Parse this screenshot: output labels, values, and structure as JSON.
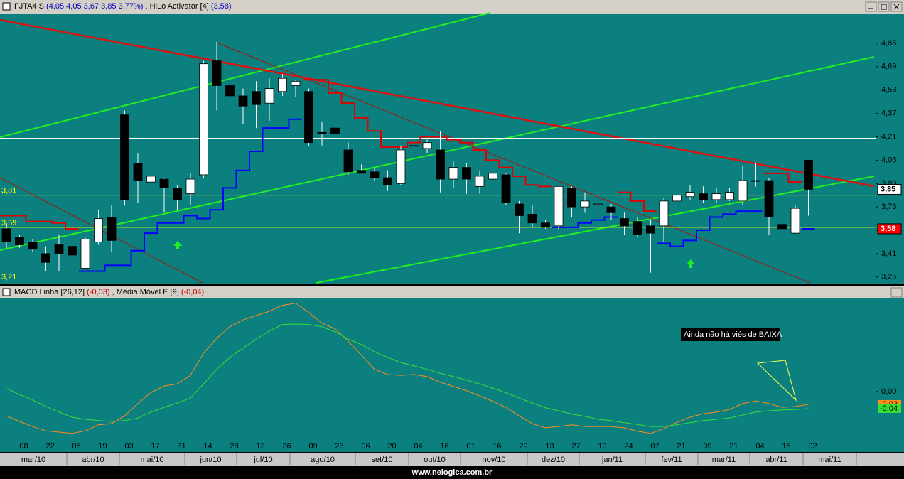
{
  "chart_data": [
    {
      "type": "candlestick",
      "title_parts": [
        {
          "text": "FJTA4 S",
          "color": "#000000"
        },
        {
          "text": "(4,05   4,05   3,67   3,85   3,77%)",
          "color": "#0000c0"
        },
        {
          "text": ", HiLo Activator [4]",
          "color": "#000000"
        },
        {
          "text": "(3,58)",
          "color": "#0000c0"
        }
      ],
      "categories": [
        null,
        "08",
        null,
        "22",
        null,
        "05",
        null,
        "19",
        null,
        "03",
        null,
        "17",
        null,
        "31",
        null,
        "14",
        null,
        "28",
        null,
        "12",
        null,
        "26",
        null,
        "09",
        null,
        "23",
        null,
        "06",
        null,
        "20",
        null,
        "04",
        null,
        "18",
        null,
        "01",
        null,
        "16",
        null,
        "29",
        null,
        "13",
        null,
        "27",
        null,
        "10",
        null,
        "24",
        null,
        "07",
        null,
        "21",
        null,
        "09",
        null,
        "21",
        null,
        "04",
        null,
        "18",
        null,
        "02"
      ],
      "months": [
        "mar/10",
        "abr/10",
        "mai/10",
        "jun/10",
        "jul/10",
        "ago/10",
        "set/10",
        "out/10",
        "nov/10",
        "dez/10",
        "jan/11",
        "fev/11",
        "mar/11",
        "abr/11",
        "mai/11"
      ],
      "open": [
        3.58,
        3.52,
        3.49,
        3.41,
        3.47,
        3.46,
        3.31,
        3.49,
        3.66,
        4.36,
        4.03,
        3.9,
        3.92,
        3.86,
        3.82,
        3.95,
        4.73,
        4.56,
        4.49,
        4.52,
        4.44,
        4.52,
        4.56,
        4.52,
        4.24,
        4.27,
        4.12,
        3.98,
        3.97,
        3.93,
        3.89,
        4.15,
        4.13,
        4.12,
        3.92,
        4.0,
        3.87,
        3.92,
        3.95,
        3.75,
        3.68,
        3.62,
        3.6,
        3.86,
        3.73,
        3.75,
        3.73,
        3.65,
        3.63,
        3.6,
        3.6,
        3.77,
        3.8,
        3.82,
        3.78,
        3.78,
        3.77,
        3.91,
        3.91,
        3.61,
        3.55,
        4.05
      ],
      "high": [
        3.62,
        3.54,
        3.51,
        3.46,
        3.54,
        3.49,
        3.52,
        3.71,
        3.74,
        4.39,
        4.1,
        4.03,
        3.93,
        3.88,
        3.96,
        4.73,
        4.86,
        4.64,
        4.54,
        4.59,
        4.61,
        4.64,
        4.6,
        4.54,
        4.31,
        4.34,
        4.17,
        4.02,
        4.0,
        3.98,
        4.15,
        4.24,
        4.19,
        4.25,
        4.04,
        4.03,
        3.98,
        3.98,
        3.96,
        3.77,
        3.74,
        3.64,
        3.87,
        3.87,
        3.83,
        3.81,
        3.75,
        3.69,
        3.66,
        3.64,
        3.79,
        3.86,
        3.88,
        3.87,
        3.86,
        3.86,
        4.01,
        4.03,
        3.93,
        3.64,
        3.74,
        4.05
      ],
      "low": [
        3.44,
        3.45,
        3.42,
        3.29,
        3.29,
        3.3,
        3.31,
        3.47,
        3.42,
        3.74,
        3.76,
        3.69,
        3.69,
        3.71,
        3.74,
        3.93,
        4.39,
        4.13,
        4.3,
        4.27,
        4.32,
        4.49,
        4.48,
        4.15,
        4.15,
        3.98,
        3.95,
        3.96,
        3.91,
        3.84,
        3.88,
        4.1,
        4.1,
        3.83,
        3.86,
        3.82,
        3.82,
        3.81,
        3.74,
        3.55,
        3.59,
        3.58,
        3.58,
        3.66,
        3.69,
        3.69,
        3.64,
        3.54,
        3.52,
        3.28,
        3.49,
        3.75,
        3.78,
        3.76,
        3.76,
        3.77,
        3.74,
        3.87,
        3.54,
        3.4,
        3.55,
        3.67
      ],
      "close": [
        3.49,
        3.47,
        3.44,
        3.35,
        3.41,
        3.4,
        3.51,
        3.65,
        3.5,
        3.78,
        3.91,
        3.94,
        3.86,
        3.78,
        3.92,
        4.71,
        4.56,
        4.49,
        4.42,
        4.43,
        4.54,
        4.61,
        4.59,
        4.17,
        4.23,
        4.23,
        3.97,
        3.96,
        3.93,
        3.88,
        4.12,
        4.15,
        4.17,
        3.92,
        4.0,
        3.92,
        3.94,
        3.96,
        3.76,
        3.67,
        3.62,
        3.59,
        3.87,
        3.73,
        3.77,
        3.75,
        3.69,
        3.6,
        3.54,
        3.55,
        3.77,
        3.81,
        3.83,
        3.78,
        3.82,
        3.83,
        3.91,
        3.91,
        3.66,
        3.58,
        3.72,
        3.85
      ],
      "up_color": "#ffffff",
      "down_color": "#000000",
      "wick_color": "#ffffff",
      "hilo_sell": [
        3.67,
        3.67,
        3.63,
        3.63,
        3.62,
        3.58,
        null,
        null,
        null,
        null,
        null,
        null,
        null,
        null,
        null,
        null,
        null,
        null,
        null,
        null,
        null,
        null,
        null,
        4.6,
        4.6,
        4.51,
        4.44,
        4.34,
        4.25,
        4.14,
        4.14,
        4.17,
        4.21,
        4.21,
        4.19,
        4.17,
        4.12,
        4.05,
        4.0,
        3.94,
        3.88,
        3.87,
        null,
        null,
        null,
        null,
        null,
        3.83,
        3.77,
        3.7,
        null,
        null,
        null,
        null,
        null,
        null,
        null,
        null,
        3.96,
        3.96,
        3.9,
        null
      ],
      "hilo_buy": [
        null,
        null,
        null,
        null,
        null,
        null,
        3.29,
        3.29,
        3.33,
        3.33,
        3.43,
        3.55,
        3.62,
        3.62,
        3.67,
        3.65,
        3.71,
        3.86,
        3.98,
        4.11,
        4.27,
        4.27,
        4.33,
        null,
        null,
        null,
        null,
        null,
        null,
        null,
        null,
        null,
        null,
        null,
        null,
        null,
        null,
        null,
        null,
        null,
        null,
        null,
        3.59,
        3.59,
        3.62,
        3.64,
        3.66,
        null,
        null,
        null,
        3.48,
        3.46,
        3.5,
        3.57,
        3.66,
        3.68,
        3.7,
        3.7,
        null,
        null,
        null,
        3.58
      ],
      "hilo_sell_color": "#e00000",
      "hilo_buy_color": "#0000ff",
      "ylim": [
        3.21,
        5.015
      ],
      "yticks": [
        {
          "value": 4.85,
          "label": "4,85"
        },
        {
          "value": 4.69,
          "label": "4,69"
        },
        {
          "value": 4.53,
          "label": "4,53"
        },
        {
          "value": 4.37,
          "label": "4,37"
        },
        {
          "value": 4.21,
          "label": "4,21"
        },
        {
          "value": 4.05,
          "label": "4,05"
        },
        {
          "value": 3.89,
          "label": "3,89"
        },
        {
          "value": 3.73,
          "label": "3,73"
        },
        {
          "value": 3.57,
          "label": "3,57"
        },
        {
          "value": 3.41,
          "label": "3,41"
        },
        {
          "value": 3.25,
          "label": "3,25"
        }
      ],
      "hlines": [
        {
          "value": 3.81,
          "label": "3,81",
          "color": "#ffff00"
        },
        {
          "value": 3.59,
          "label": "3,59",
          "color": "#ffff00"
        },
        {
          "value": 4.2,
          "color": "#ffffff"
        },
        {
          "value": 3.21,
          "label": "3,21"
        }
      ],
      "price_tags": [
        {
          "value": 3.85,
          "label": "3,85",
          "color": "#ffffff",
          "text_color": "#000000"
        },
        {
          "value": 3.58,
          "label": "3,58",
          "color": "#ff0000",
          "text_color": "#ffffff"
        }
      ]
    },
    {
      "type": "line",
      "title_parts": [
        {
          "text": "MACD Linha [26,12]",
          "color": "#000000"
        },
        {
          "text": "(-0,03)",
          "color": "#c00000"
        },
        {
          "text": ", Média Móvel E [9]",
          "color": "#000000"
        },
        {
          "text": "(-0,04)",
          "color": "#c00000"
        }
      ],
      "ylim": [
        -0.11,
        0.218
      ],
      "yticks": [
        {
          "value": 0,
          "label": "0,00"
        }
      ],
      "annotation": "Ainda não há viés de BAIXA",
      "series": [
        {
          "color": "#ff8c1a",
          "tag": "-0,03",
          "values": [
            -0.057,
            -0.07,
            -0.082,
            -0.092,
            -0.095,
            -0.098,
            -0.092,
            -0.078,
            -0.075,
            -0.057,
            -0.028,
            -0.002,
            0.013,
            0.018,
            0.038,
            0.09,
            0.125,
            0.152,
            0.168,
            0.178,
            0.188,
            0.202,
            0.207,
            0.185,
            0.16,
            0.147,
            0.118,
            0.085,
            0.052,
            0.04,
            0.038,
            0.04,
            0.035,
            0.022,
            0.012,
            0.002,
            -0.01,
            -0.023,
            -0.037,
            -0.057,
            -0.075,
            -0.085,
            -0.082,
            -0.078,
            -0.082,
            -0.082,
            -0.082,
            -0.085,
            -0.093,
            -0.098,
            -0.087,
            -0.072,
            -0.06,
            -0.052,
            -0.048,
            -0.042,
            -0.028,
            -0.022,
            -0.028,
            -0.037,
            -0.035,
            -0.03
          ]
        },
        {
          "color": "#33e033",
          "tag": "-0,04",
          "values": [
            0.007,
            -0.007,
            -0.02,
            -0.035,
            -0.048,
            -0.06,
            -0.065,
            -0.068,
            -0.07,
            -0.068,
            -0.062,
            -0.048,
            -0.037,
            -0.027,
            -0.015,
            0.018,
            0.052,
            0.08,
            0.102,
            0.123,
            0.142,
            0.157,
            0.158,
            0.157,
            0.152,
            0.14,
            0.123,
            0.11,
            0.093,
            0.08,
            0.068,
            0.06,
            0.052,
            0.043,
            0.035,
            0.027,
            0.018,
            0.008,
            -0.003,
            -0.015,
            -0.027,
            -0.038,
            -0.045,
            -0.053,
            -0.058,
            -0.065,
            -0.068,
            -0.073,
            -0.077,
            -0.082,
            -0.082,
            -0.078,
            -0.073,
            -0.068,
            -0.065,
            -0.062,
            -0.055,
            -0.048,
            -0.045,
            -0.043,
            -0.042,
            -0.04
          ]
        }
      ]
    }
  ],
  "footer": "www.nelogica.com.br"
}
